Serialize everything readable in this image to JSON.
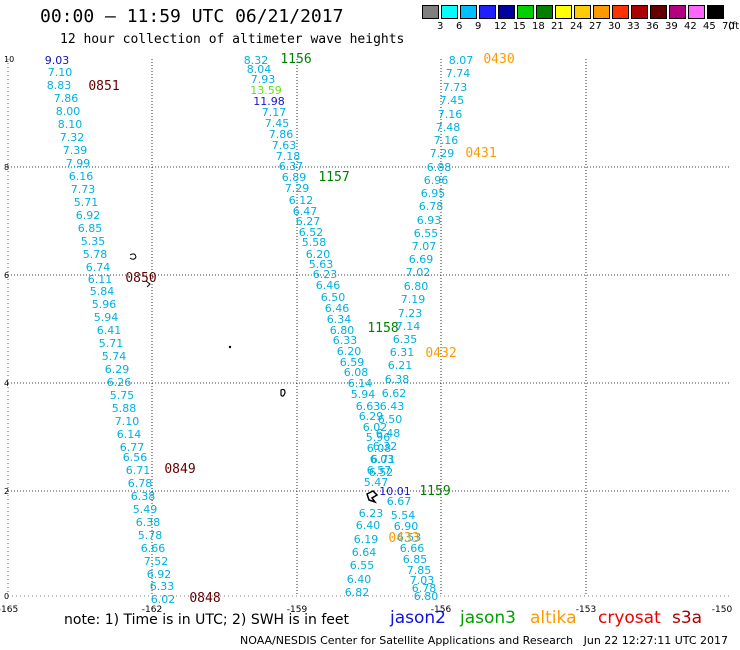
{
  "header": {
    "title": "00:00 – 11:59 UTC 06/21/2017",
    "subtitle": "12 hour collection of altimeter wave heights"
  },
  "legend": {
    "colors": [
      "#7f7f7f",
      "#00ffff",
      "#00bfff",
      "#1f1fff",
      "#0000a0",
      "#00cf00",
      "#008000",
      "#ffff00",
      "#ffcc00",
      "#ff9900",
      "#ff3300",
      "#aa0000",
      "#660000",
      "#b30080",
      "#ff66ff",
      "#000000"
    ],
    "labels": [
      "3",
      "6",
      "9",
      "12",
      "15",
      "18",
      "21",
      "24",
      "27",
      "30",
      "33",
      "36",
      "39",
      "42",
      "45",
      "70",
      "(ft)"
    ]
  },
  "map": {
    "lon_ticks": [
      "-165",
      "-162",
      "-159",
      "-156",
      "-153",
      "-150"
    ],
    "lat_ticks": [
      "0",
      "2",
      "4",
      "6",
      "8",
      "10"
    ],
    "tracks": [
      {
        "name": "track-west",
        "values": [
          "9.03",
          "7.10",
          "8.83",
          "7.86",
          "8.00",
          "8.10",
          "7.32",
          "7.39",
          "7.99",
          "6.16",
          "7.73",
          "5.71",
          "6.92",
          "6.85",
          "5.35",
          "5.78",
          "6.74",
          "6.11",
          "5.84",
          "5.96",
          "5.94",
          "6.41",
          "5.71",
          "5.74",
          "6.29",
          "6.26",
          "5.75",
          "5.88",
          "7.10",
          "6.14",
          "6.77",
          "6.56",
          "6.71",
          "6.78",
          "6.38",
          "5.49",
          "6.38",
          "5.78",
          "6.66",
          "7.52",
          "6.92",
          "6.33",
          "6.02"
        ]
      },
      {
        "name": "track-middle",
        "values": [
          "8.32",
          "8.04",
          "7.93",
          "13.59",
          "11.98",
          "7.17",
          "7.45",
          "7.86",
          "7.63",
          "7.18",
          "6.37",
          "6.89",
          "7.29",
          "6.12",
          "6.47",
          "6.27",
          "6.52",
          "5.58",
          "6.20",
          "5.63",
          "6.23",
          "6.46",
          "6.50",
          "6.46",
          "6.34",
          "6.80",
          "6.33",
          "6.20",
          "6.59",
          "6.08",
          "6.14",
          "5.94",
          "6.63",
          "6.29",
          "6.02",
          "5.96",
          "6.08",
          "6.03",
          "6.57",
          "5.47",
          "6.23",
          "6.40",
          "6.19",
          "6.64",
          "6.55",
          "6.40",
          "6.82"
        ]
      },
      {
        "name": "track-east",
        "values": [
          "8.07",
          "7.74",
          "7.73",
          "7.45",
          "7.16",
          "7.48",
          "7.16",
          "7.29",
          "6.88",
          "6.96",
          "6.95",
          "6.78",
          "6.93",
          "6.55",
          "7.07",
          "6.69",
          "7.02",
          "6.80",
          "7.19",
          "7.23",
          "7.14",
          "6.35",
          "6.31",
          "6.21",
          "6.38",
          "6.62",
          "6.43",
          "6.50",
          "6.48",
          "6.32",
          "6.71",
          "6.52",
          "10.01",
          "6.67",
          "5.54",
          "6.90",
          "6.53",
          "6.66",
          "6.85",
          "7.85",
          "7.03",
          "6.78",
          "6.80"
        ]
      }
    ],
    "time_labels": [
      {
        "text": "1156",
        "color": "#008000"
      },
      {
        "text": "0851",
        "color": "#660000"
      },
      {
        "text": "0430",
        "color": "#ff9900"
      },
      {
        "text": "0431",
        "color": "#ff9900"
      },
      {
        "text": "1157",
        "color": "#008000"
      },
      {
        "text": "0850",
        "color": "#660000"
      },
      {
        "text": "1158",
        "color": "#008000"
      },
      {
        "text": "0432",
        "color": "#ff9900"
      },
      {
        "text": "0849",
        "color": "#660000"
      },
      {
        "text": "1159",
        "color": "#008000"
      },
      {
        "text": "0433",
        "color": "#ff9900"
      },
      {
        "text": "0848",
        "color": "#660000"
      }
    ]
  },
  "note": "note: 1) Time is in UTC; 2) SWH is in feet",
  "satellites": [
    {
      "name": "jason2",
      "color": "#1010e0"
    },
    {
      "name": "jason3",
      "color": "#00a000"
    },
    {
      "name": "altika",
      "color": "#ff9900"
    },
    {
      "name": "cryosat",
      "color": "#ee0000"
    },
    {
      "name": "s3a",
      "color": "#aa0000"
    }
  ],
  "footer": "NOAA/NESDIS Center for Satellite Applications and Research   Jun 22 12:27:11 UTC 2017"
}
